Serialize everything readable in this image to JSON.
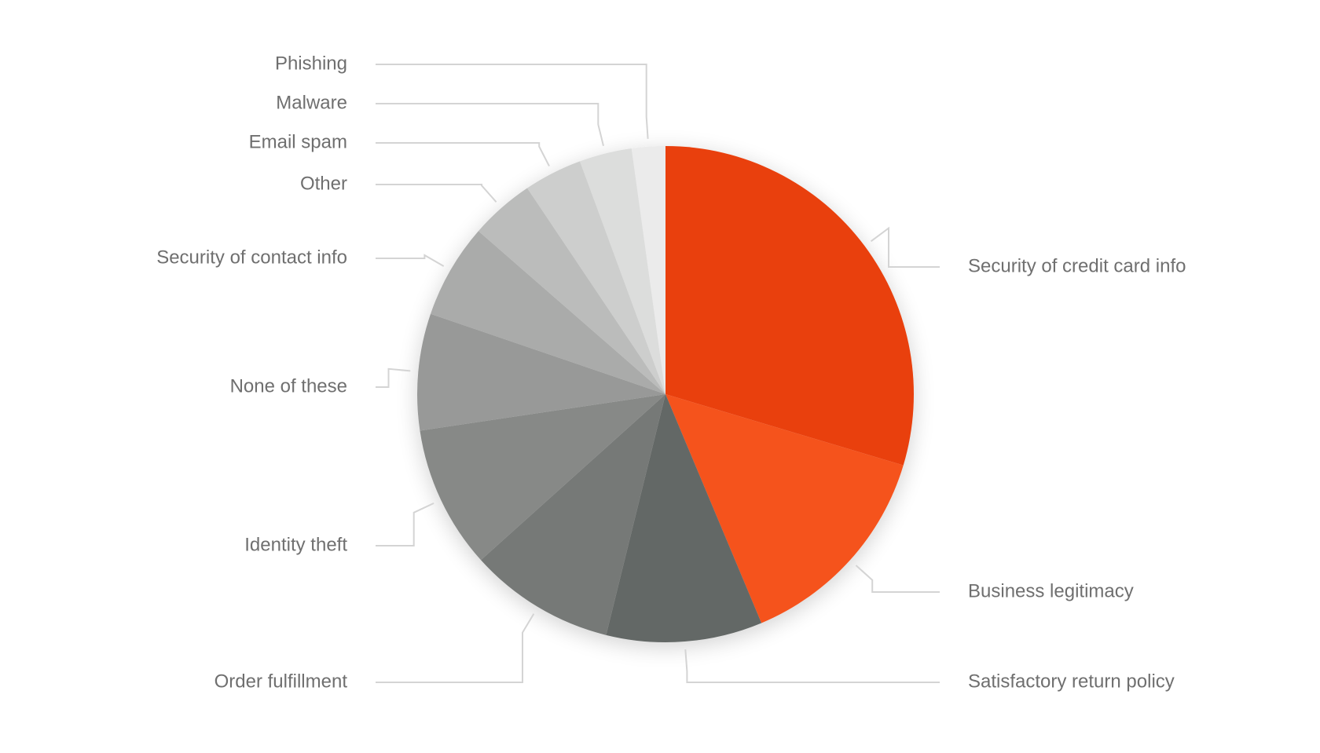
{
  "chart_data": {
    "type": "pie",
    "start_angle": "12 o'clock",
    "direction": "clockwise",
    "legend": "none (leader-line labels)",
    "slices": [
      {
        "label": "Security of credit card info",
        "value": 31.2,
        "color": "#e9400b"
      },
      {
        "label": "Business legitimacy",
        "value": 14.8,
        "color": "#f5531e"
      },
      {
        "label": "Satisfactory return policy",
        "value": 10.7,
        "color": "#646866"
      },
      {
        "label": "Order fulfillment",
        "value": 10.0,
        "color": "#767977"
      },
      {
        "label": "Identity theft",
        "value": 9.8,
        "color": "#878987"
      },
      {
        "label": "None of these",
        "value": 8.0,
        "color": "#989998"
      },
      {
        "label": "Security of contact info",
        "value": 6.5,
        "color": "#aaabaa"
      },
      {
        "label": "Other",
        "value": 4.4,
        "color": "#bbbcbb"
      },
      {
        "label": "Email spam",
        "value": 4.0,
        "color": "#cdcecd"
      },
      {
        "label": "Malware",
        "value": 3.6,
        "color": "#dcdddc"
      },
      {
        "label": "Phishing",
        "value": 2.3,
        "color": "#ebebeb"
      }
    ]
  }
}
